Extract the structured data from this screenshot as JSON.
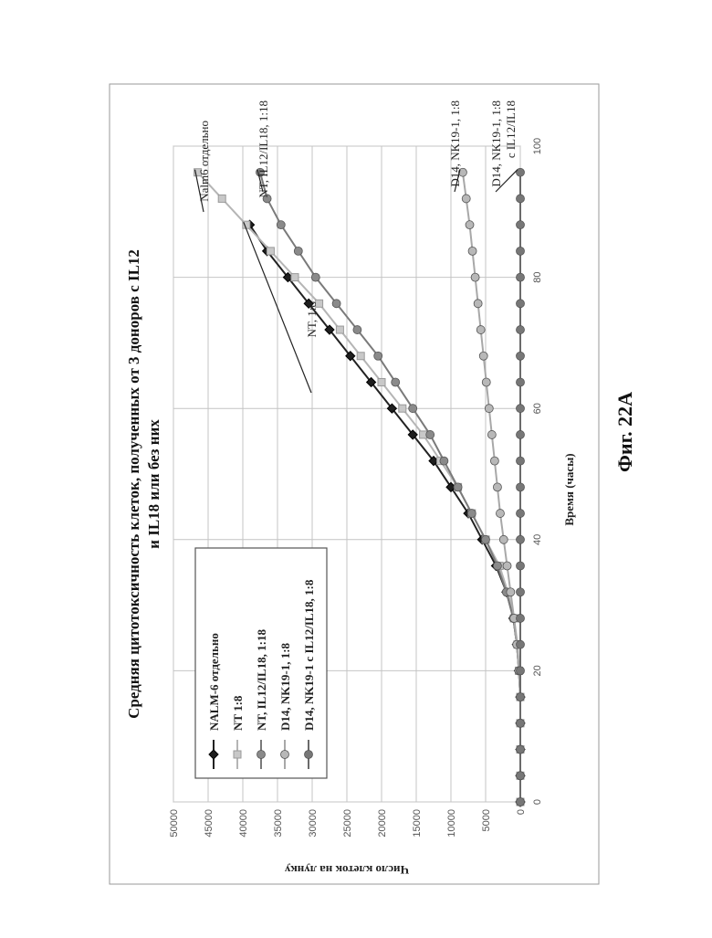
{
  "figure_caption": "Фиг. 22A",
  "chart_data": {
    "type": "line",
    "title_line1": "Средняя цитотоксичность клеток, полученных от 3 доноров с IL12",
    "title_line2": "и IL18 или без них",
    "xlabel": "Время (часы)",
    "ylabel": "Число клеток на лунку",
    "xlim": [
      0,
      100
    ],
    "ylim": [
      0,
      50000
    ],
    "xticks": [
      "0",
      "20",
      "40",
      "60",
      "80",
      "100"
    ],
    "yticks": [
      "0",
      "5000",
      "10000",
      "15000",
      "20000",
      "25000",
      "30000",
      "35000",
      "40000",
      "45000",
      "50000"
    ],
    "grid": true,
    "legend_position": "top-left",
    "x": [
      0,
      4,
      8,
      12,
      16,
      20,
      24,
      28,
      32,
      36,
      40,
      44,
      48,
      52,
      56,
      60,
      64,
      68,
      72,
      76,
      80,
      84,
      88,
      92,
      96
    ],
    "series": [
      {
        "name": "NALM-6 отдельно",
        "color": "#222222",
        "marker": "diamond-dark",
        "values": [
          0,
          0,
          0,
          0,
          0,
          200,
          500,
          1000,
          2000,
          3500,
          5500,
          7500,
          10000,
          12500,
          15500,
          18500,
          21500,
          24500,
          27500,
          30500,
          33500,
          36500,
          39000,
          null,
          null
        ]
      },
      {
        "name": "NT 1:8",
        "color": "#b5b5b5",
        "marker": "square-light",
        "values": [
          0,
          0,
          0,
          0,
          0,
          200,
          400,
          900,
          1800,
          3000,
          5000,
          7000,
          9000,
          11500,
          14000,
          17000,
          20000,
          23000,
          26000,
          29000,
          32500,
          36000,
          39500,
          43000,
          46500
        ]
      },
      {
        "name": "NT, IL12/IL18, 1:18",
        "color": "#7a7a7a",
        "marker": "circle-mid",
        "values": [
          0,
          0,
          0,
          0,
          0,
          200,
          500,
          1000,
          2000,
          3300,
          5000,
          7000,
          9000,
          11000,
          13000,
          15500,
          18000,
          20500,
          23500,
          26500,
          29500,
          32000,
          34500,
          36500,
          37500
        ]
      },
      {
        "name": "D14, NK19-1, 1:8",
        "color": "#a8a8a8",
        "marker": "circle-light",
        "values": [
          0,
          0,
          0,
          0,
          0,
          200,
          500,
          900,
          1400,
          1900,
          2400,
          2900,
          3300,
          3700,
          4100,
          4500,
          4900,
          5300,
          5700,
          6100,
          6500,
          6900,
          7300,
          7800,
          8300
        ]
      },
      {
        "name": "D14, NK19-1 с IL12/IL18, 1:8",
        "color": "#6a6a6a",
        "marker": "circle-dark",
        "values": [
          0,
          0,
          0,
          0,
          0,
          0,
          0,
          0,
          0,
          0,
          0,
          0,
          0,
          0,
          0,
          0,
          0,
          0,
          0,
          0,
          0,
          0,
          0,
          0,
          0
        ]
      }
    ],
    "annotations": [
      {
        "lines": [
          "Nalm6 отдельно"
        ],
        "series": 1,
        "point_x": 96
      },
      {
        "lines": [
          "NT, IL12/IL18, 1:18"
        ],
        "series": 2,
        "point_x": 96
      },
      {
        "lines": [
          "NT, 1:8"
        ],
        "series": 1,
        "point_x": 88
      },
      {
        "lines": [
          "D14, NK19-1, 1:8"
        ],
        "series": 3,
        "point_x": 96
      },
      {
        "lines": [
          "D14, NK19-1, 1:8",
          "с IL12/IL18"
        ],
        "series": 4,
        "point_x": 96
      }
    ]
  }
}
